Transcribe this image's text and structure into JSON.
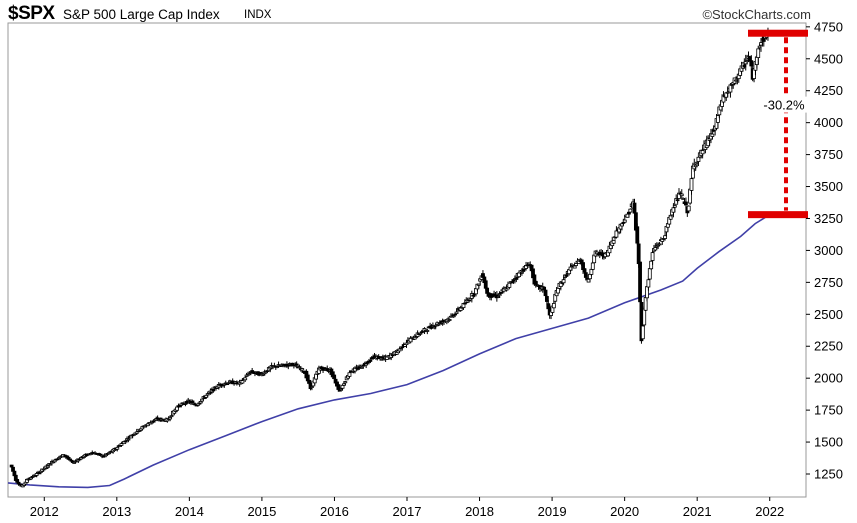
{
  "header": {
    "symbol": "$SPX",
    "name": "S&P 500 Large Cap Index",
    "exchange": "INDX",
    "source": "©StockCharts.com"
  },
  "chart_data": {
    "type": "candlestick",
    "title": "$SPX S&P 500 Large Cap Index INDX",
    "x_range": [
      2011.5,
      2022.5
    ],
    "x_ticks": [
      2012,
      2013,
      2014,
      2015,
      2016,
      2017,
      2018,
      2019,
      2020,
      2021,
      2022
    ],
    "y_range": [
      1070,
      4780
    ],
    "y_ticks": [
      1250,
      1500,
      1750,
      2000,
      2250,
      2500,
      2750,
      3000,
      3250,
      3500,
      3750,
      4000,
      4250,
      4500,
      4750
    ],
    "grid": false,
    "colors": {
      "candle": "#000000",
      "moving_average": "#4040a8",
      "annotation": "#e00000"
    },
    "series": [
      {
        "kind": "price",
        "points": [
          [
            2011.55,
            1320
          ],
          [
            2011.62,
            1200
          ],
          [
            2011.7,
            1150
          ],
          [
            2011.78,
            1210
          ],
          [
            2011.88,
            1240
          ],
          [
            2012.0,
            1290
          ],
          [
            2012.15,
            1360
          ],
          [
            2012.28,
            1400
          ],
          [
            2012.4,
            1340
          ],
          [
            2012.52,
            1380
          ],
          [
            2012.66,
            1420
          ],
          [
            2012.82,
            1390
          ],
          [
            2012.95,
            1430
          ],
          [
            2013.1,
            1500
          ],
          [
            2013.25,
            1570
          ],
          [
            2013.4,
            1630
          ],
          [
            2013.55,
            1680
          ],
          [
            2013.7,
            1670
          ],
          [
            2013.85,
            1780
          ],
          [
            2014.0,
            1820
          ],
          [
            2014.1,
            1790
          ],
          [
            2014.25,
            1870
          ],
          [
            2014.4,
            1940
          ],
          [
            2014.55,
            1970
          ],
          [
            2014.7,
            1960
          ],
          [
            2014.85,
            2050
          ],
          [
            2015.0,
            2030
          ],
          [
            2015.15,
            2090
          ],
          [
            2015.3,
            2100
          ],
          [
            2015.45,
            2110
          ],
          [
            2015.6,
            2050
          ],
          [
            2015.68,
            1920
          ],
          [
            2015.8,
            2080
          ],
          [
            2015.95,
            2060
          ],
          [
            2016.08,
            1900
          ],
          [
            2016.22,
            2050
          ],
          [
            2016.38,
            2090
          ],
          [
            2016.55,
            2170
          ],
          [
            2016.7,
            2150
          ],
          [
            2016.85,
            2200
          ],
          [
            2017.0,
            2280
          ],
          [
            2017.2,
            2360
          ],
          [
            2017.4,
            2420
          ],
          [
            2017.6,
            2470
          ],
          [
            2017.8,
            2580
          ],
          [
            2017.95,
            2680
          ],
          [
            2018.05,
            2820
          ],
          [
            2018.12,
            2650
          ],
          [
            2018.25,
            2640
          ],
          [
            2018.4,
            2720
          ],
          [
            2018.55,
            2820
          ],
          [
            2018.7,
            2900
          ],
          [
            2018.78,
            2720
          ],
          [
            2018.9,
            2700
          ],
          [
            2018.98,
            2480
          ],
          [
            2019.08,
            2700
          ],
          [
            2019.25,
            2850
          ],
          [
            2019.4,
            2930
          ],
          [
            2019.5,
            2750
          ],
          [
            2019.6,
            2980
          ],
          [
            2019.75,
            2960
          ],
          [
            2019.9,
            3150
          ],
          [
            2020.05,
            3280
          ],
          [
            2020.13,
            3380
          ],
          [
            2020.2,
            2950
          ],
          [
            2020.24,
            2300
          ],
          [
            2020.3,
            2650
          ],
          [
            2020.4,
            3000
          ],
          [
            2020.55,
            3100
          ],
          [
            2020.68,
            3350
          ],
          [
            2020.78,
            3450
          ],
          [
            2020.88,
            3300
          ],
          [
            2020.95,
            3650
          ],
          [
            2021.1,
            3800
          ],
          [
            2021.25,
            3950
          ],
          [
            2021.35,
            4180
          ],
          [
            2021.5,
            4300
          ],
          [
            2021.62,
            4420
          ],
          [
            2021.72,
            4520
          ],
          [
            2021.78,
            4350
          ],
          [
            2021.85,
            4600
          ],
          [
            2021.92,
            4650
          ],
          [
            2021.98,
            4700
          ]
        ]
      },
      {
        "kind": "moving_average",
        "points": [
          [
            2011.5,
            1180
          ],
          [
            2011.8,
            1165
          ],
          [
            2012.2,
            1150
          ],
          [
            2012.6,
            1145
          ],
          [
            2012.9,
            1160
          ],
          [
            2013.1,
            1210
          ],
          [
            2013.5,
            1320
          ],
          [
            2014.0,
            1440
          ],
          [
            2014.5,
            1550
          ],
          [
            2015.0,
            1660
          ],
          [
            2015.5,
            1760
          ],
          [
            2016.0,
            1830
          ],
          [
            2016.5,
            1880
          ],
          [
            2017.0,
            1950
          ],
          [
            2017.5,
            2060
          ],
          [
            2018.0,
            2190
          ],
          [
            2018.5,
            2310
          ],
          [
            2019.0,
            2390
          ],
          [
            2019.5,
            2470
          ],
          [
            2020.0,
            2590
          ],
          [
            2020.5,
            2690
          ],
          [
            2020.8,
            2760
          ],
          [
            2021.0,
            2860
          ],
          [
            2021.3,
            2990
          ],
          [
            2021.6,
            3110
          ],
          [
            2021.8,
            3210
          ],
          [
            2022.0,
            3280
          ]
        ]
      }
    ],
    "annotation": {
      "label": "-30.2%",
      "upper_level": 4700,
      "lower_level": 3280
    }
  }
}
